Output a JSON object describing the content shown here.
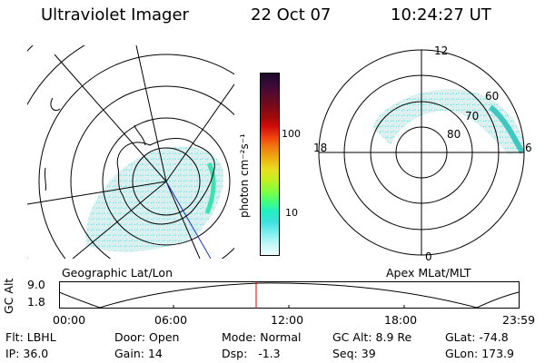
{
  "header": {
    "instrument": "Ultraviolet Imager",
    "date": "22 Oct 07",
    "time": "10:24:27 UT"
  },
  "colorbar": {
    "label": "photon cm⁻²s⁻¹",
    "ticks": [
      "100",
      "10"
    ],
    "colors": [
      "#1a0a2a",
      "#3a0a3a",
      "#5a0a2a",
      "#7a0a1a",
      "#a00a0a",
      "#d00a0a",
      "#f04010",
      "#f08010",
      "#f0b010",
      "#e8e020",
      "#c0f020",
      "#80ff40",
      "#40ff80",
      "#20f0c0",
      "#40e0e0",
      "#80f0f0",
      "#c0f8f8",
      "#f0ffff"
    ]
  },
  "left_map": {
    "caption": "Geographic Lat/Lon"
  },
  "right_map": {
    "caption": "Apex MLat/MLT",
    "mlt_labels": [
      "12",
      "18",
      "6",
      "0"
    ],
    "lat_labels": [
      "60",
      "70",
      "80"
    ]
  },
  "altitude_plot": {
    "ylabel": "GC Alt",
    "yticks": [
      "9.0",
      "1.8"
    ],
    "xticks": [
      "00:00",
      "06:00",
      "12:00",
      "18:00",
      "23:59"
    ],
    "marker_color": "#e00000"
  },
  "status": {
    "filter_label": "Flt:",
    "filter_value": "LBHL",
    "door_label": "Door:",
    "door_value": "Open",
    "mode_label": "Mode:",
    "mode_value": "Normal",
    "gcalt_label": "GC Alt:",
    "gcalt_value": "8.9 Re",
    "glat_label": "GLat:",
    "glat_value": "-74.8",
    "ip_label": "IP:",
    "ip_value": "36.0",
    "gain_label": "Gain:",
    "gain_value": "14",
    "dsp_label": "Dsp:",
    "dsp_value": "-1.3",
    "seq_label": "Seq:",
    "seq_value": "39",
    "glon_label": "GLon:",
    "glon_value": "173.9"
  }
}
